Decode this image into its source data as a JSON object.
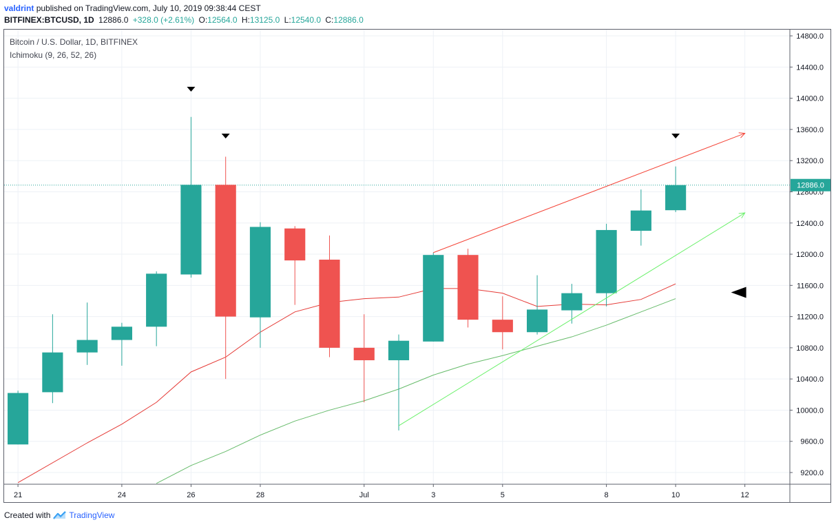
{
  "header": {
    "author": "valdrint",
    "published_text": "published on TradingView.com, July 10, 2019 09:38:44 CEST"
  },
  "quote": {
    "symbol": "BITFINEX:BTCUSD, 1D",
    "last": "12886.0",
    "change": "+328.0 (+2.61%)",
    "open_label": "O:",
    "open": "12564.0",
    "high_label": "H:",
    "high": "13125.0",
    "low_label": "L:",
    "low": "12540.0",
    "close_label": "C:",
    "close": "12886.0"
  },
  "legend": {
    "title": "Bitcoin / U.S. Dollar, 1D, BITFINEX",
    "indicator": "Ichimoku (9, 26, 52, 26)"
  },
  "footer": {
    "created_with": "Created with",
    "brand": "TradingView"
  },
  "colors": {
    "up": "#26a69a",
    "down": "#ef5350",
    "conversion_line": "#e53935",
    "base_line": "#66bb6a",
    "resistance_line": "#f44336",
    "support_line": "#69f069",
    "price_line": "#26a69a"
  },
  "chart_data": {
    "type": "candlestick",
    "x_axis_labels": [
      "21",
      "24",
      "26",
      "28",
      "Jul",
      "3",
      "5",
      "8",
      "10",
      "12"
    ],
    "x_axis_label_days": [
      0,
      3,
      5,
      7,
      10,
      12,
      14,
      17,
      19,
      21
    ],
    "y_axis_labels": [
      "9200.0",
      "9600.0",
      "10000.0",
      "10400.0",
      "10800.0",
      "11200.0",
      "11600.0",
      "12000.0",
      "12400.0",
      "12800.0",
      "13200.0",
      "13600.0",
      "14000.0",
      "14400.0",
      "14800.0"
    ],
    "ylim": [
      9050,
      14880
    ],
    "xlim": [
      -0.4,
      22.3
    ],
    "last_price_label": "12886.0",
    "candles": [
      {
        "day": 0,
        "date": "Jun 21",
        "open": 9560,
        "high": 10250,
        "low": 9560,
        "close": 10220
      },
      {
        "day": 1,
        "date": "Jun 22",
        "open": 10230,
        "high": 11230,
        "low": 10090,
        "close": 10740
      },
      {
        "day": 2,
        "date": "Jun 23",
        "open": 10740,
        "high": 11380,
        "low": 10580,
        "close": 10900
      },
      {
        "day": 3,
        "date": "Jun 24",
        "open": 10900,
        "high": 11120,
        "low": 10570,
        "close": 11070
      },
      {
        "day": 4,
        "date": "Jun 25",
        "open": 11070,
        "high": 11780,
        "low": 10820,
        "close": 11750
      },
      {
        "day": 5,
        "date": "Jun 26",
        "open": 11740,
        "high": 13760,
        "low": 11700,
        "close": 12890
      },
      {
        "day": 6,
        "date": "Jun 27",
        "open": 12890,
        "high": 13250,
        "low": 10400,
        "close": 11200
      },
      {
        "day": 7,
        "date": "Jun 28",
        "open": 11190,
        "high": 12410,
        "low": 10800,
        "close": 12350
      },
      {
        "day": 8,
        "date": "Jun 29",
        "open": 12330,
        "high": 12360,
        "low": 11350,
        "close": 11920
      },
      {
        "day": 9,
        "date": "Jun 30",
        "open": 11930,
        "high": 12240,
        "low": 10680,
        "close": 10800
      },
      {
        "day": 10,
        "date": "Jul 1",
        "open": 10800,
        "high": 11230,
        "low": 10100,
        "close": 10640
      },
      {
        "day": 11,
        "date": "Jul 2",
        "open": 10640,
        "high": 10970,
        "low": 9740,
        "close": 10890
      },
      {
        "day": 12,
        "date": "Jul 3",
        "open": 10880,
        "high": 12020,
        "low": 10880,
        "close": 11990
      },
      {
        "day": 13,
        "date": "Jul 4",
        "open": 11990,
        "high": 12070,
        "low": 11060,
        "close": 11160
      },
      {
        "day": 14,
        "date": "Jul 5",
        "open": 11160,
        "high": 11460,
        "low": 10780,
        "close": 11000
      },
      {
        "day": 15,
        "date": "Jul 6",
        "open": 11000,
        "high": 11730,
        "low": 10970,
        "close": 11290
      },
      {
        "day": 16,
        "date": "Jul 7",
        "open": 11280,
        "high": 11620,
        "low": 11110,
        "close": 11500
      },
      {
        "day": 17,
        "date": "Jul 8",
        "open": 11500,
        "high": 12390,
        "low": 11330,
        "close": 12310
      },
      {
        "day": 18,
        "date": "Jul 9",
        "open": 12300,
        "high": 12830,
        "low": 12110,
        "close": 12560
      },
      {
        "day": 19,
        "date": "Jul 10",
        "open": 12564,
        "high": 13125,
        "low": 12540,
        "close": 12886
      }
    ],
    "conversion_line": {
      "days": [
        0,
        2,
        3,
        4,
        5,
        6,
        7,
        8,
        9,
        10,
        11,
        12,
        13,
        14,
        15,
        16,
        17,
        18,
        19
      ],
      "values": [
        9070,
        9580,
        9820,
        10100,
        10490,
        10680,
        11000,
        11260,
        11380,
        11430,
        11450,
        11560,
        11560,
        11500,
        11330,
        11360,
        11350,
        11420,
        11620
      ]
    },
    "base_line": {
      "days": [
        4,
        5,
        6,
        7,
        8,
        9,
        10,
        11,
        12,
        13,
        14,
        15,
        16,
        17,
        18,
        19
      ],
      "values": [
        9060,
        9290,
        9470,
        9680,
        9860,
        10000,
        10120,
        10270,
        10450,
        10590,
        10700,
        10820,
        10940,
        11090,
        11260,
        11430
      ]
    },
    "trendlines": [
      {
        "kind": "resistance",
        "from": {
          "day": 12,
          "value": 12020
        },
        "to": {
          "day": 21,
          "value": 13550
        }
      },
      {
        "kind": "support",
        "from": {
          "day": 11,
          "value": 9800
        },
        "to": {
          "day": 21,
          "value": 12530
        }
      }
    ],
    "markers": [
      {
        "shape": "triangle-down",
        "day": 5,
        "value": 14120
      },
      {
        "shape": "triangle-down",
        "day": 6,
        "value": 13520
      },
      {
        "shape": "triangle-down",
        "day": 19,
        "value": 13520
      },
      {
        "shape": "triangle-left",
        "day": 20.8,
        "value": 11510
      }
    ]
  }
}
